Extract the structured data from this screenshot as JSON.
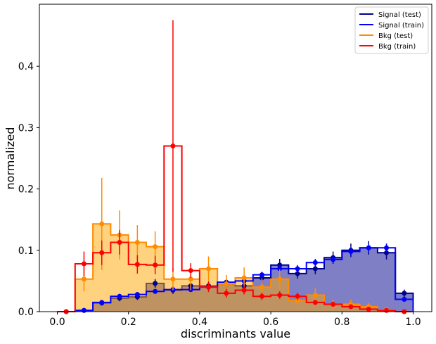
{
  "chart_data": {
    "type": "histogram",
    "xlabel": "discriminants value",
    "ylabel": "normalized",
    "xlim": [
      -0.05,
      1.05
    ],
    "ylim": [
      0,
      0.5
    ],
    "x_ticks": [
      0.0,
      0.2,
      0.4,
      0.6,
      0.8,
      1.0
    ],
    "x_tick_labels": [
      "0.0",
      "0.2",
      "0.4",
      "0.6",
      "0.8",
      "1.0"
    ],
    "y_ticks": [
      0.0,
      0.1,
      0.2,
      0.3,
      0.4
    ],
    "y_tick_labels": [
      "0.0",
      "0.1",
      "0.2",
      "0.3",
      "0.4"
    ],
    "bin_edges": [
      0.0,
      0.05,
      0.1,
      0.15,
      0.2,
      0.25,
      0.3,
      0.35,
      0.4,
      0.45,
      0.5,
      0.55,
      0.6,
      0.65,
      0.7,
      0.75,
      0.8,
      0.85,
      0.9,
      0.95,
      1.0
    ],
    "legend_position": "top-right",
    "series": [
      {
        "name": "Signal (test)",
        "color": "#00008b",
        "fill": "#00008b",
        "values": [
          0.0,
          0.002,
          0.014,
          0.022,
          0.024,
          0.046,
          0.035,
          0.042,
          0.042,
          0.045,
          0.042,
          0.055,
          0.076,
          0.062,
          0.07,
          0.088,
          0.1,
          0.104,
          0.096,
          0.03
        ],
        "errors": [
          0.0,
          0.002,
          0.004,
          0.005,
          0.005,
          0.007,
          0.006,
          0.007,
          0.007,
          0.007,
          0.007,
          0.008,
          0.01,
          0.008,
          0.009,
          0.01,
          0.011,
          0.011,
          0.011,
          0.006
        ]
      },
      {
        "name": "Signal (train)",
        "color": "#0000ff",
        "fill": null,
        "values": [
          0.0,
          0.002,
          0.015,
          0.025,
          0.028,
          0.033,
          0.036,
          0.036,
          0.04,
          0.048,
          0.05,
          0.06,
          0.07,
          0.07,
          0.08,
          0.085,
          0.098,
          0.104,
          0.104,
          0.02
        ],
        "errors": [
          0.0,
          0.001,
          0.003,
          0.004,
          0.004,
          0.004,
          0.004,
          0.004,
          0.005,
          0.005,
          0.005,
          0.005,
          0.006,
          0.006,
          0.006,
          0.006,
          0.007,
          0.007,
          0.007,
          0.003
        ]
      },
      {
        "name": "Bkg (test)",
        "color": "#ff8c00",
        "fill": "#ffa500",
        "values": [
          0.0,
          0.053,
          0.143,
          0.125,
          0.113,
          0.106,
          0.053,
          0.053,
          0.07,
          0.045,
          0.055,
          0.04,
          0.053,
          0.018,
          0.027,
          0.012,
          0.012,
          0.008,
          0.003,
          0.0
        ],
        "errors": [
          0.0,
          0.02,
          0.075,
          0.04,
          0.028,
          0.025,
          0.018,
          0.018,
          0.02,
          0.015,
          0.017,
          0.014,
          0.016,
          0.01,
          0.012,
          0.008,
          0.008,
          0.006,
          0.004,
          0.0
        ]
      },
      {
        "name": "Bkg (train)",
        "color": "#ff0000",
        "fill": null,
        "values": [
          0.0,
          0.078,
          0.096,
          0.113,
          0.077,
          0.076,
          0.27,
          0.067,
          0.04,
          0.03,
          0.035,
          0.025,
          0.027,
          0.025,
          0.015,
          0.012,
          0.008,
          0.004,
          0.002,
          0.0
        ],
        "errors": [
          0.0,
          0.02,
          0.02,
          0.02,
          0.015,
          0.015,
          0.205,
          0.012,
          0.008,
          0.007,
          0.007,
          0.006,
          0.006,
          0.006,
          0.004,
          0.004,
          0.003,
          0.002,
          0.002,
          0.0
        ]
      }
    ]
  }
}
